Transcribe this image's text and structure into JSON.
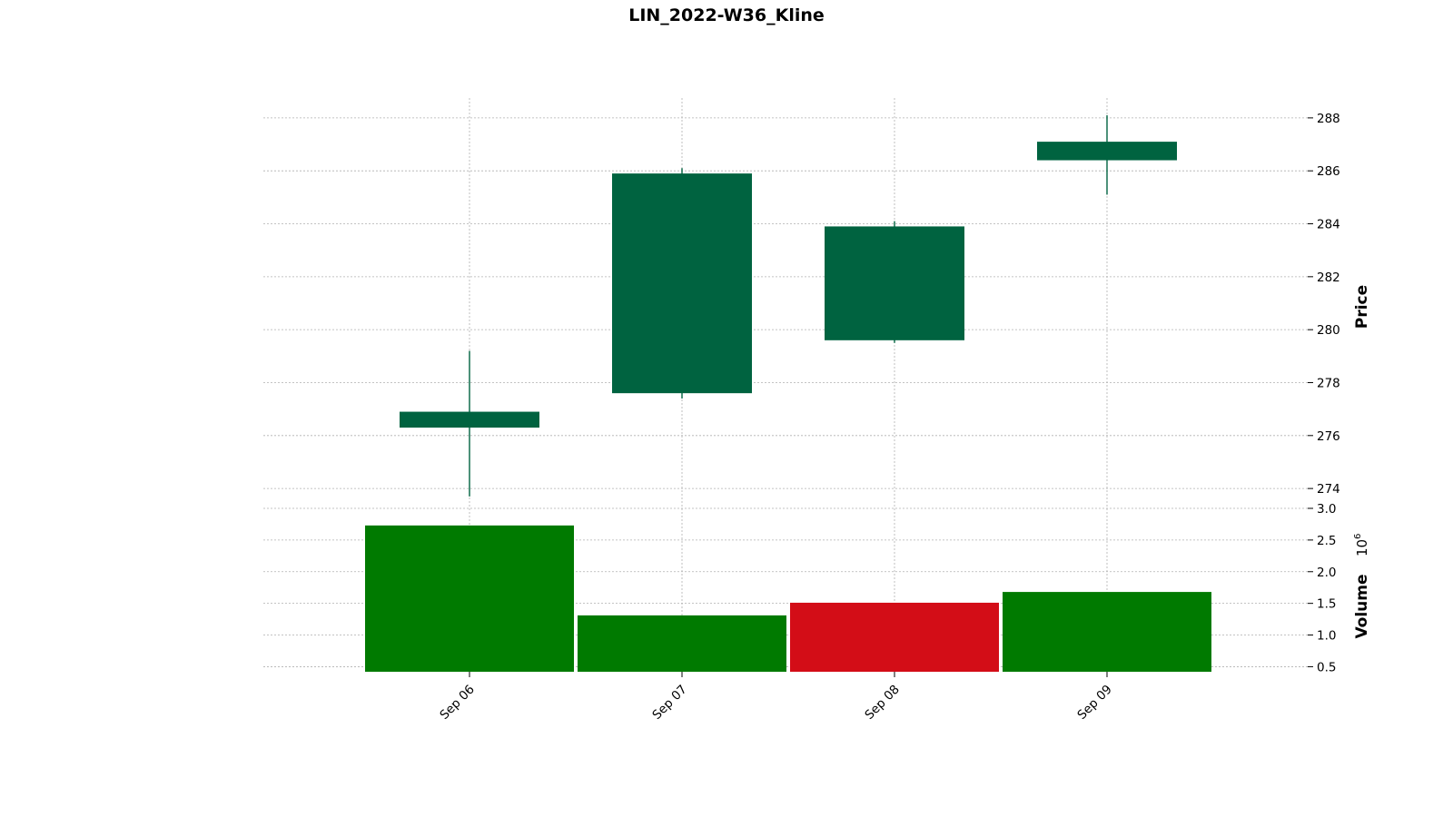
{
  "chart_data": {
    "type": "candlestick",
    "title": "LIN_2022-W36_Kline",
    "categories": [
      "Sep 06",
      "Sep 07",
      "Sep 08",
      "Sep 09"
    ],
    "ohlc": [
      {
        "date": "Sep 06",
        "open": 276.3,
        "high": 279.2,
        "low": 273.7,
        "close": 276.9
      },
      {
        "date": "Sep 07",
        "open": 277.6,
        "high": 286.1,
        "low": 277.4,
        "close": 285.9
      },
      {
        "date": "Sep 08",
        "open": 279.6,
        "high": 284.1,
        "low": 279.5,
        "close": 283.9
      },
      {
        "date": "Sep 09",
        "open": 286.4,
        "high": 288.1,
        "low": 285.1,
        "close": 287.1
      }
    ],
    "volume": {
      "values": [
        2.73,
        1.31,
        1.51,
        1.68
      ],
      "colors": [
        "#007a00",
        "#007a00",
        "#d30d17",
        "#007a00"
      ],
      "ylabel": "Volume",
      "multiplier_label": "10",
      "multiplier_exponent": "6",
      "ylim": [
        0.42,
        3.0
      ],
      "ticks": [
        "0.5",
        "1.0",
        "1.5",
        "2.0",
        "2.5",
        "3.0"
      ]
    },
    "price": {
      "ylabel": "Price",
      "ylim": [
        273.25,
        288.75
      ],
      "ticks": [
        "274",
        "276",
        "278",
        "280",
        "282",
        "284",
        "286",
        "288"
      ]
    },
    "colors": {
      "candle_up": "#006340",
      "grid": "#b0b0b0"
    },
    "grid": true
  }
}
